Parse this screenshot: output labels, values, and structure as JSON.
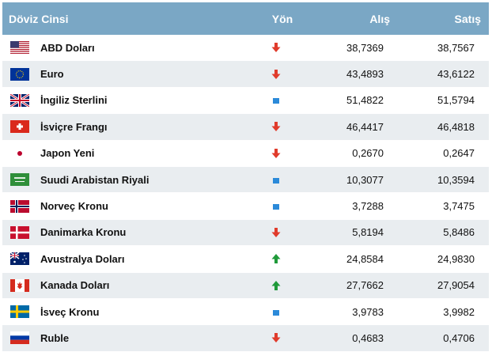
{
  "header": {
    "currency": "Döviz Cinsi",
    "direction": "Yön",
    "buy": "Alış",
    "sell": "Satış"
  },
  "rows": [
    {
      "name": "ABD Doları",
      "flag": "us-flag-icon",
      "direction": "down",
      "buy": "38,7369",
      "sell": "38,7567"
    },
    {
      "name": "Euro",
      "flag": "eu-flag-icon",
      "direction": "down",
      "buy": "43,4893",
      "sell": "43,6122"
    },
    {
      "name": "İngiliz Sterlini",
      "flag": "uk-flag-icon",
      "direction": "flat",
      "buy": "51,4822",
      "sell": "51,5794"
    },
    {
      "name": "İsviçre Frangı",
      "flag": "ch-flag-icon",
      "direction": "down",
      "buy": "46,4417",
      "sell": "46,4818"
    },
    {
      "name": "Japon Yeni",
      "flag": "jp-flag-icon",
      "direction": "down",
      "buy": "0,2670",
      "sell": "0,2647"
    },
    {
      "name": "Suudi Arabistan Riyali",
      "flag": "sa-flag-icon",
      "direction": "flat",
      "buy": "10,3077",
      "sell": "10,3594"
    },
    {
      "name": "Norveç Kronu",
      "flag": "no-flag-icon",
      "direction": "flat",
      "buy": "3,7288",
      "sell": "3,7475"
    },
    {
      "name": "Danimarka Kronu",
      "flag": "dk-flag-icon",
      "direction": "down",
      "buy": "5,8194",
      "sell": "5,8486"
    },
    {
      "name": "Avustralya Doları",
      "flag": "au-flag-icon",
      "direction": "up",
      "buy": "24,8584",
      "sell": "24,9830"
    },
    {
      "name": "Kanada Doları",
      "flag": "ca-flag-icon",
      "direction": "up",
      "buy": "27,7662",
      "sell": "27,9054"
    },
    {
      "name": "İsveç Kronu",
      "flag": "se-flag-icon",
      "direction": "flat",
      "buy": "3,9783",
      "sell": "3,9982"
    },
    {
      "name": "Ruble",
      "flag": "ru-flag-icon",
      "direction": "down",
      "buy": "0,4683",
      "sell": "0,4706"
    }
  ],
  "colors": {
    "header_bg": "#7aa7c5",
    "row_alt_bg": "#e9edf0",
    "down": "#e03b2b",
    "up": "#1f9a3a",
    "flat": "#2b8ad9"
  }
}
